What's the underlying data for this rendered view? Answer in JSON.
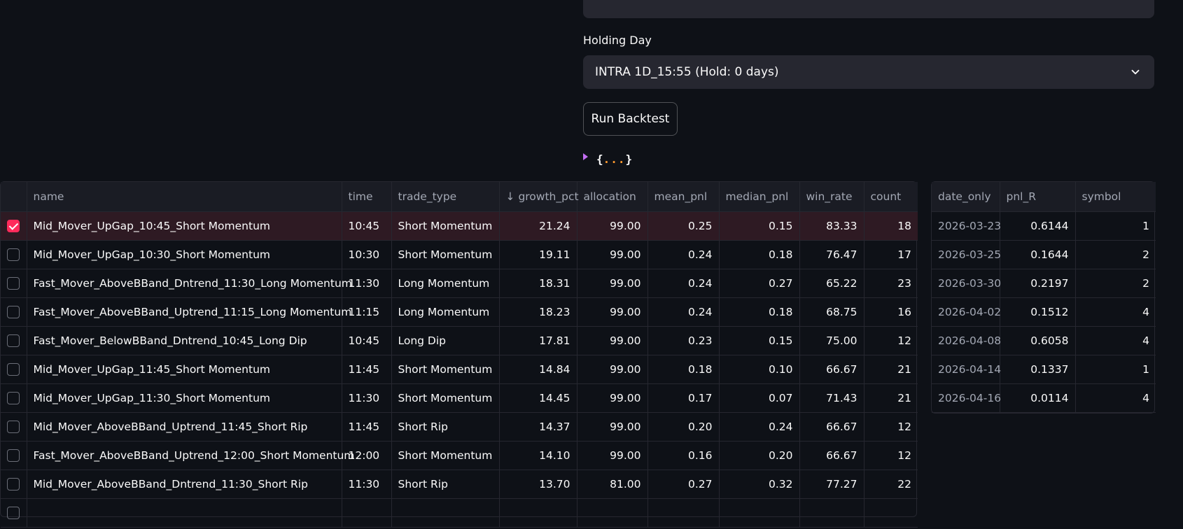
{
  "form": {
    "holding_day_label": "Holding Day",
    "holding_day_value": "INTRA 1D_15:55 (Hold: 0 days)",
    "run_button_label": "Run Backtest"
  },
  "json_viewer": {
    "open": "{",
    "dots": "...",
    "close": "}"
  },
  "main_table": {
    "sort_arrow": "↓",
    "columns": [
      "name",
      "time",
      "trade_type",
      "growth_pct",
      "allocation",
      "mean_pnl",
      "median_pnl",
      "win_rate",
      "count"
    ],
    "rows": [
      {
        "selected": true,
        "name": "Mid_Mover_UpGap_10:45_Short Momentum",
        "time": "10:45",
        "trade_type": "Short Momentum",
        "growth_pct": "21.24",
        "allocation": "99.00",
        "mean_pnl": "0.25",
        "median_pnl": "0.15",
        "win_rate": "83.33",
        "count": "18"
      },
      {
        "selected": false,
        "name": "Mid_Mover_UpGap_10:30_Short Momentum",
        "time": "10:30",
        "trade_type": "Short Momentum",
        "growth_pct": "19.11",
        "allocation": "99.00",
        "mean_pnl": "0.24",
        "median_pnl": "0.18",
        "win_rate": "76.47",
        "count": "17"
      },
      {
        "selected": false,
        "name": "Fast_Mover_AboveBBand_Dntrend_11:30_Long Momentum",
        "time": "11:30",
        "trade_type": "Long Momentum",
        "growth_pct": "18.31",
        "allocation": "99.00",
        "mean_pnl": "0.24",
        "median_pnl": "0.27",
        "win_rate": "65.22",
        "count": "23"
      },
      {
        "selected": false,
        "name": "Fast_Mover_AboveBBand_Uptrend_11:15_Long Momentum",
        "time": "11:15",
        "trade_type": "Long Momentum",
        "growth_pct": "18.23",
        "allocation": "99.00",
        "mean_pnl": "0.24",
        "median_pnl": "0.18",
        "win_rate": "68.75",
        "count": "16"
      },
      {
        "selected": false,
        "name": "Fast_Mover_BelowBBand_Dntrend_10:45_Long Dip",
        "time": "10:45",
        "trade_type": "Long Dip",
        "growth_pct": "17.81",
        "allocation": "99.00",
        "mean_pnl": "0.23",
        "median_pnl": "0.15",
        "win_rate": "75.00",
        "count": "12"
      },
      {
        "selected": false,
        "name": "Mid_Mover_UpGap_11:45_Short Momentum",
        "time": "11:45",
        "trade_type": "Short Momentum",
        "growth_pct": "14.84",
        "allocation": "99.00",
        "mean_pnl": "0.18",
        "median_pnl": "0.10",
        "win_rate": "66.67",
        "count": "21"
      },
      {
        "selected": false,
        "name": "Mid_Mover_UpGap_11:30_Short Momentum",
        "time": "11:30",
        "trade_type": "Short Momentum",
        "growth_pct": "14.45",
        "allocation": "99.00",
        "mean_pnl": "0.17",
        "median_pnl": "0.07",
        "win_rate": "71.43",
        "count": "21"
      },
      {
        "selected": false,
        "name": "Mid_Mover_AboveBBand_Uptrend_11:45_Short Rip",
        "time": "11:45",
        "trade_type": "Short Rip",
        "growth_pct": "14.37",
        "allocation": "99.00",
        "mean_pnl": "0.20",
        "median_pnl": "0.24",
        "win_rate": "66.67",
        "count": "12"
      },
      {
        "selected": false,
        "name": "Fast_Mover_AboveBBand_Uptrend_12:00_Short Momentum",
        "time": "12:00",
        "trade_type": "Short Momentum",
        "growth_pct": "14.10",
        "allocation": "99.00",
        "mean_pnl": "0.16",
        "median_pnl": "0.20",
        "win_rate": "66.67",
        "count": "12"
      },
      {
        "selected": false,
        "name": "Mid_Mover_AboveBBand_Dntrend_11:30_Short Rip",
        "time": "11:30",
        "trade_type": "Short Rip",
        "growth_pct": "13.70",
        "allocation": "81.00",
        "mean_pnl": "0.27",
        "median_pnl": "0.32",
        "win_rate": "77.27",
        "count": "22"
      }
    ]
  },
  "detail_table": {
    "columns": [
      "date_only",
      "pnl_R",
      "symbol"
    ],
    "rows": [
      {
        "date_only": "2026-03-23",
        "pnl_R": "0.6144",
        "symbol": "1"
      },
      {
        "date_only": "2026-03-25",
        "pnl_R": "0.1644",
        "symbol": "2"
      },
      {
        "date_only": "2026-03-30",
        "pnl_R": "0.2197",
        "symbol": "2"
      },
      {
        "date_only": "2026-04-02",
        "pnl_R": "0.1512",
        "symbol": "4"
      },
      {
        "date_only": "2026-04-08",
        "pnl_R": "0.6058",
        "symbol": "4"
      },
      {
        "date_only": "2026-04-14",
        "pnl_R": "0.1337",
        "symbol": "1"
      },
      {
        "date_only": "2026-04-16",
        "pnl_R": "0.0114",
        "symbol": "4"
      }
    ]
  },
  "colors": {
    "background": "#0e1117",
    "accent": "#ff2b5b",
    "panel": "#262730"
  }
}
